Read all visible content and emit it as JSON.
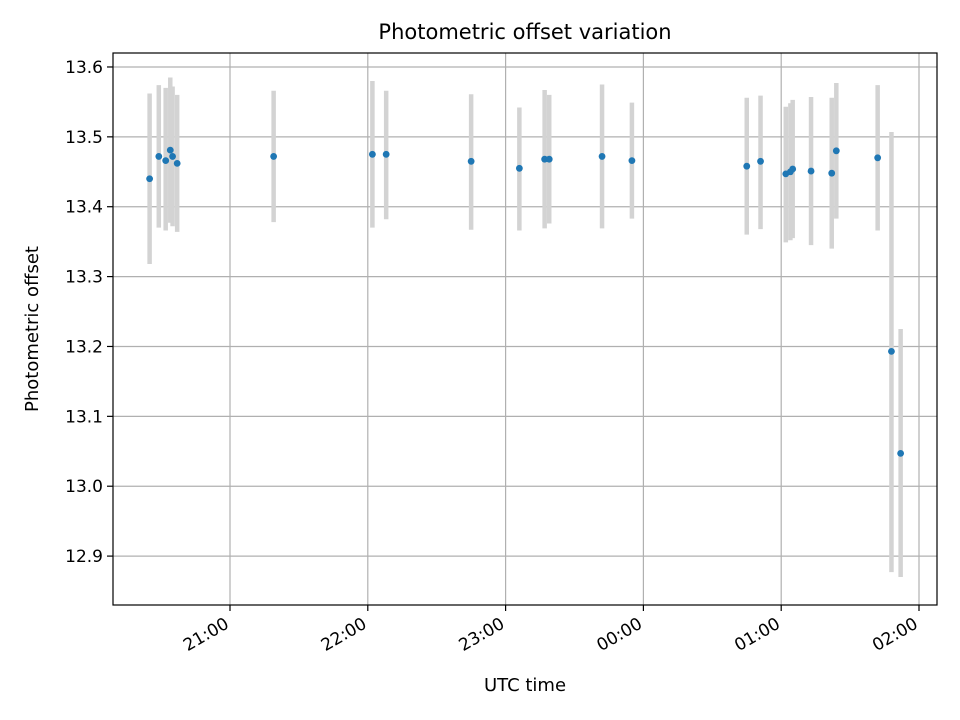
{
  "chart_data": {
    "type": "scatter",
    "title": "Photometric offset variation",
    "xlabel": "UTC time",
    "ylabel": "Photometric offset",
    "grid": true,
    "legend": "none",
    "x_tick_labels": [
      "21:00",
      "22:00",
      "23:00",
      "00:00",
      "01:00",
      "02:00"
    ],
    "y_tick_labels": [
      "12.9",
      "13.0",
      "13.1",
      "13.2",
      "13.3",
      "13.4",
      "13.5",
      "13.6"
    ],
    "ylim": [
      12.83,
      13.62
    ],
    "xlim": [
      "20:10",
      "02:00"
    ],
    "colors": {
      "point": "#1f77b4",
      "errorbar": "#d3d3d3",
      "grid": "#b0b0b0"
    },
    "points": [
      {
        "t": "20:25",
        "y": 13.44,
        "lo": 13.318,
        "hi": 13.562
      },
      {
        "t": "20:29",
        "y": 13.472,
        "lo": 13.37,
        "hi": 13.574
      },
      {
        "t": "20:32",
        "y": 13.466,
        "lo": 13.366,
        "hi": 13.57
      },
      {
        "t": "20:34",
        "y": 13.481,
        "lo": 13.377,
        "hi": 13.585
      },
      {
        "t": "20:35",
        "y": 13.472,
        "lo": 13.372,
        "hi": 13.572
      },
      {
        "t": "20:37",
        "y": 13.462,
        "lo": 13.364,
        "hi": 13.56
      },
      {
        "t": "21:19",
        "y": 13.472,
        "lo": 13.378,
        "hi": 13.566
      },
      {
        "t": "22:02",
        "y": 13.475,
        "lo": 13.37,
        "hi": 13.58
      },
      {
        "t": "22:08",
        "y": 13.475,
        "lo": 13.382,
        "hi": 13.566
      },
      {
        "t": "22:45",
        "y": 13.465,
        "lo": 13.367,
        "hi": 13.561
      },
      {
        "t": "23:06",
        "y": 13.455,
        "lo": 13.366,
        "hi": 13.542
      },
      {
        "t": "23:17",
        "y": 13.468,
        "lo": 13.369,
        "hi": 13.567
      },
      {
        "t": "23:19",
        "y": 13.468,
        "lo": 13.376,
        "hi": 13.56
      },
      {
        "t": "23:42",
        "y": 13.472,
        "lo": 13.369,
        "hi": 13.575
      },
      {
        "t": "23:55",
        "y": 13.466,
        "lo": 13.383,
        "hi": 13.549
      },
      {
        "t": "00:45",
        "y": 13.458,
        "lo": 13.36,
        "hi": 13.556
      },
      {
        "t": "00:51",
        "y": 13.465,
        "lo": 13.368,
        "hi": 13.559
      },
      {
        "t": "01:02",
        "y": 13.447,
        "lo": 13.349,
        "hi": 13.543
      },
      {
        "t": "01:04",
        "y": 13.45,
        "lo": 13.352,
        "hi": 13.548
      },
      {
        "t": "01:05",
        "y": 13.454,
        "lo": 13.355,
        "hi": 13.553
      },
      {
        "t": "01:13",
        "y": 13.451,
        "lo": 13.345,
        "hi": 13.557
      },
      {
        "t": "01:22",
        "y": 13.448,
        "lo": 13.34,
        "hi": 13.556
      },
      {
        "t": "01:24",
        "y": 13.48,
        "lo": 13.383,
        "hi": 13.577
      },
      {
        "t": "01:42",
        "y": 13.47,
        "lo": 13.366,
        "hi": 13.574
      },
      {
        "t": "01:48",
        "y": 13.193,
        "lo": 12.877,
        "hi": 13.507
      },
      {
        "t": "01:52",
        "y": 13.047,
        "lo": 12.87,
        "hi": 13.225
      }
    ]
  }
}
